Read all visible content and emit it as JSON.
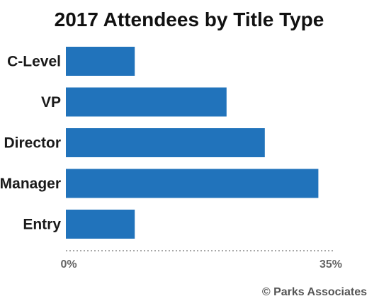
{
  "chart_data": {
    "type": "bar",
    "orientation": "horizontal",
    "title": "2017 Attendees by Title Type",
    "categories": [
      "C-Level",
      "VP",
      "Director",
      "Manager",
      "Entry"
    ],
    "values": [
      9,
      21,
      26,
      33,
      9
    ],
    "xlim": [
      0,
      35
    ],
    "x_tick_labels": [
      "0%",
      "35%"
    ],
    "grid": false,
    "bar_color": "#2173bb",
    "axis_color": "#8c8c8c"
  },
  "source": "© Parks Associates"
}
